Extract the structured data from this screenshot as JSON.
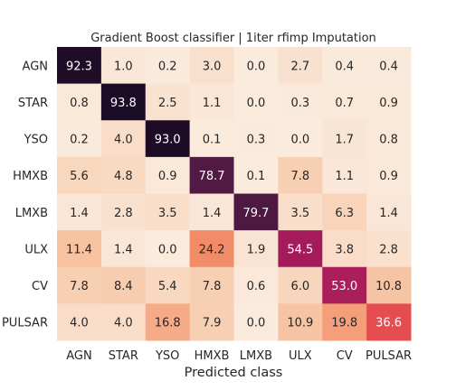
{
  "chart_data": {
    "type": "heatmap",
    "title": "Gradient Boost classifier | 1iter rfimp Imputation",
    "xlabel": "Predicted class",
    "ylabel": "",
    "x_categories": [
      "AGN",
      "STAR",
      "YSO",
      "HMXB",
      "LMXB",
      "ULX",
      "CV",
      "PULSAR"
    ],
    "y_categories": [
      "AGN",
      "STAR",
      "YSO",
      "HMXB",
      "LMXB",
      "ULX",
      "CV",
      "PULSAR"
    ],
    "values": [
      [
        92.3,
        1.0,
        0.2,
        3.0,
        0.0,
        2.7,
        0.4,
        0.4
      ],
      [
        0.8,
        93.8,
        2.5,
        1.1,
        0.0,
        0.3,
        0.7,
        0.9
      ],
      [
        0.2,
        4.0,
        93.0,
        0.1,
        0.3,
        0.0,
        1.7,
        0.8
      ],
      [
        5.6,
        4.8,
        0.9,
        78.7,
        0.1,
        7.8,
        1.1,
        0.9
      ],
      [
        1.4,
        2.8,
        3.5,
        1.4,
        79.7,
        3.5,
        6.3,
        1.4
      ],
      [
        11.4,
        1.4,
        0.0,
        24.2,
        1.9,
        54.5,
        3.8,
        2.8
      ],
      [
        7.8,
        8.4,
        5.4,
        7.8,
        0.6,
        6.0,
        53.0,
        10.8
      ],
      [
        4.0,
        4.0,
        16.8,
        7.9,
        0.0,
        10.9,
        19.8,
        36.6
      ]
    ],
    "color_range": [
      0,
      100
    ],
    "colorbar": false,
    "grid": false
  }
}
